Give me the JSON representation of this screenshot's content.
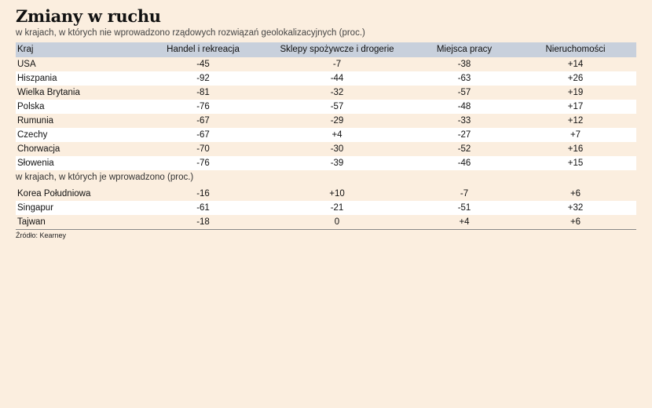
{
  "title": "Zmiany w ruchu",
  "subtitle": "w krajach, w których nie wprowadzono rządowych rozwiązań geolokalizacyjnych (proc.)",
  "chart_data": {
    "type": "table",
    "columns": [
      "Kraj",
      "Handel i rekreacja",
      "Sklepy spożywcze i drogerie",
      "Miejsca pracy",
      "Nieruchomości"
    ],
    "groups": [
      {
        "label": "",
        "rows": [
          [
            "USA",
            "-45",
            "-7",
            "-38",
            "+14"
          ],
          [
            "Hiszpania",
            "-92",
            "-44",
            "-63",
            "+26"
          ],
          [
            "Wielka Brytania",
            "-81",
            "-32",
            "-57",
            "+19"
          ],
          [
            "Polska",
            "-76",
            "-57",
            "-48",
            "+17"
          ],
          [
            "Rumunia",
            "-67",
            "-29",
            "-33",
            "+12"
          ],
          [
            "Czechy",
            "-67",
            "+4",
            "-27",
            "+7"
          ],
          [
            "Chorwacja",
            "-70",
            "-30",
            "-52",
            "+16"
          ],
          [
            "Słowenia",
            "-76",
            "-39",
            "-46",
            "+15"
          ]
        ]
      },
      {
        "label": "w krajach, w których je wprowadzono (proc.)",
        "rows": [
          [
            "Korea Południowa",
            "-16",
            "+10",
            "-7",
            "+6"
          ],
          [
            "Singapur",
            "-61",
            "-21",
            "-51",
            "+32"
          ],
          [
            "Tajwan",
            "-18",
            "0",
            "+4",
            "+6"
          ]
        ]
      }
    ]
  },
  "source": "Źródło: Kearney",
  "colors": {
    "background": "#fbeedf",
    "header_band": "#c8d0dc",
    "alt_row": "#ffffff"
  }
}
